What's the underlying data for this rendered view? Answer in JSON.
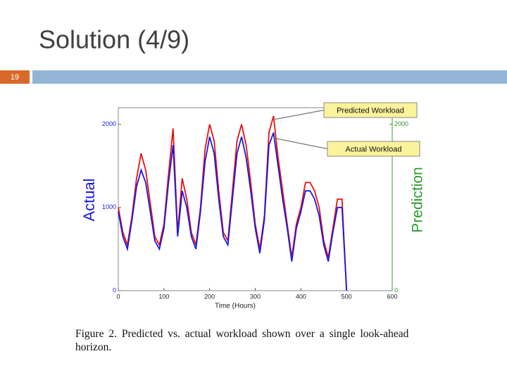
{
  "slide": {
    "title": "Solution (4/9)",
    "page_number": "19"
  },
  "chart_data": {
    "type": "line",
    "x": [
      0,
      10,
      20,
      30,
      40,
      50,
      60,
      70,
      80,
      90,
      100,
      110,
      120,
      130,
      140,
      150,
      160,
      170,
      180,
      190,
      200,
      210,
      220,
      230,
      240,
      250,
      260,
      270,
      280,
      290,
      300,
      310,
      320,
      330,
      340,
      350,
      360,
      370,
      380,
      390,
      400,
      410,
      420,
      430,
      440,
      450,
      460,
      470,
      480,
      490,
      500
    ],
    "series": [
      {
        "name": "Predicted Workload",
        "color": "#e81010",
        "values": [
          1000,
          700,
          550,
          900,
          1350,
          1650,
          1450,
          1050,
          650,
          550,
          800,
          1400,
          1950,
          700,
          1350,
          1100,
          700,
          550,
          1000,
          1700,
          2000,
          1800,
          1200,
          700,
          600,
          1200,
          1800,
          2000,
          1750,
          1300,
          800,
          500,
          900,
          1900,
          2100,
          1600,
          1200,
          800,
          400,
          800,
          1000,
          1300,
          1300,
          1200,
          1000,
          600,
          400,
          750,
          1100,
          1100,
          0
        ]
      },
      {
        "name": "Actual Workload",
        "color": "#1a1ae0",
        "values": [
          950,
          650,
          500,
          850,
          1250,
          1450,
          1300,
          950,
          600,
          500,
          750,
          1300,
          1750,
          650,
          1200,
          1000,
          650,
          500,
          950,
          1550,
          1850,
          1650,
          1100,
          650,
          550,
          1100,
          1650,
          1850,
          1600,
          1200,
          750,
          450,
          850,
          1750,
          1900,
          1500,
          1100,
          750,
          350,
          750,
          950,
          1200,
          1200,
          1100,
          900,
          550,
          350,
          700,
          1000,
          1000,
          0
        ]
      }
    ],
    "xlabel": "Time (Hours)",
    "ylabel": "Actual",
    "y2label": "Prediction",
    "xlim": [
      0,
      600
    ],
    "xticks": [
      0,
      100,
      200,
      300,
      400,
      500,
      600
    ],
    "ylim": [
      0,
      2200
    ],
    "yticks": [
      0,
      1000,
      2000
    ],
    "y2lim": [
      0,
      2200
    ],
    "y2ticks": [
      0,
      2000
    ],
    "caption": "Figure 2.    Predicted vs. actual workload shown over a single look-ahead horizon."
  }
}
